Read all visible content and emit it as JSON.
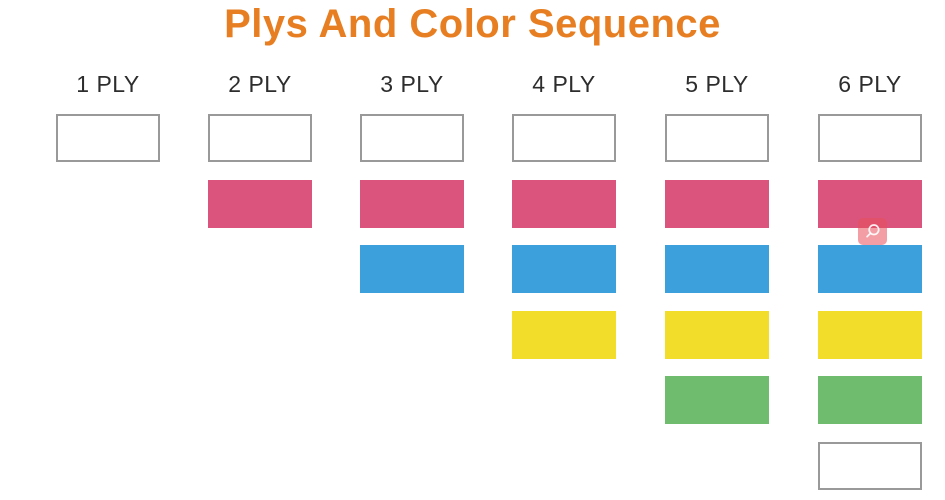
{
  "title": {
    "text": "Plys And Color Sequence",
    "color": "#E77F22"
  },
  "header_text_color": "#2D2D2D",
  "palette": {
    "white": {
      "label": "white",
      "fill": "#FFFFFF",
      "border": "#999999"
    },
    "pink": {
      "label": "pink",
      "fill": "#DA547E"
    },
    "blue": {
      "label": "blue",
      "fill": "#3BA0DC"
    },
    "yellow": {
      "label": "yellow",
      "fill": "#F2DE2A"
    },
    "green": {
      "label": "green",
      "fill": "#6FBC6F"
    }
  },
  "columns": [
    {
      "label": "1 PLY",
      "sequence": [
        "white"
      ]
    },
    {
      "label": "2 PLY",
      "sequence": [
        "white",
        "pink"
      ]
    },
    {
      "label": "3 PLY",
      "sequence": [
        "white",
        "pink",
        "blue"
      ]
    },
    {
      "label": "4 PLY",
      "sequence": [
        "white",
        "pink",
        "blue",
        "yellow"
      ]
    },
    {
      "label": "5 PLY",
      "sequence": [
        "white",
        "pink",
        "blue",
        "yellow",
        "green"
      ]
    },
    {
      "label": "6 PLY",
      "sequence": [
        "white",
        "pink",
        "blue",
        "yellow",
        "green",
        "white"
      ]
    }
  ],
  "overlay": {
    "icon": "magnifier",
    "background_color": "#E84E5A",
    "glyph_color": "#FFFFFF"
  }
}
